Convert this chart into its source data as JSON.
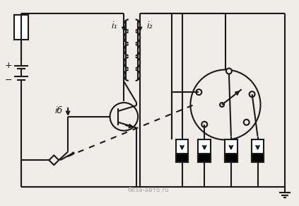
{
  "bg_color": "#f0ede8",
  "line_color": "#1a1a1a",
  "lw": 1.5,
  "figsize": [
    4.23,
    2.91
  ],
  "dpi": 100,
  "label_i1": "i₁",
  "label_i2": "i₂",
  "label_ib": "iб",
  "watermark": "беза-авто.ru"
}
